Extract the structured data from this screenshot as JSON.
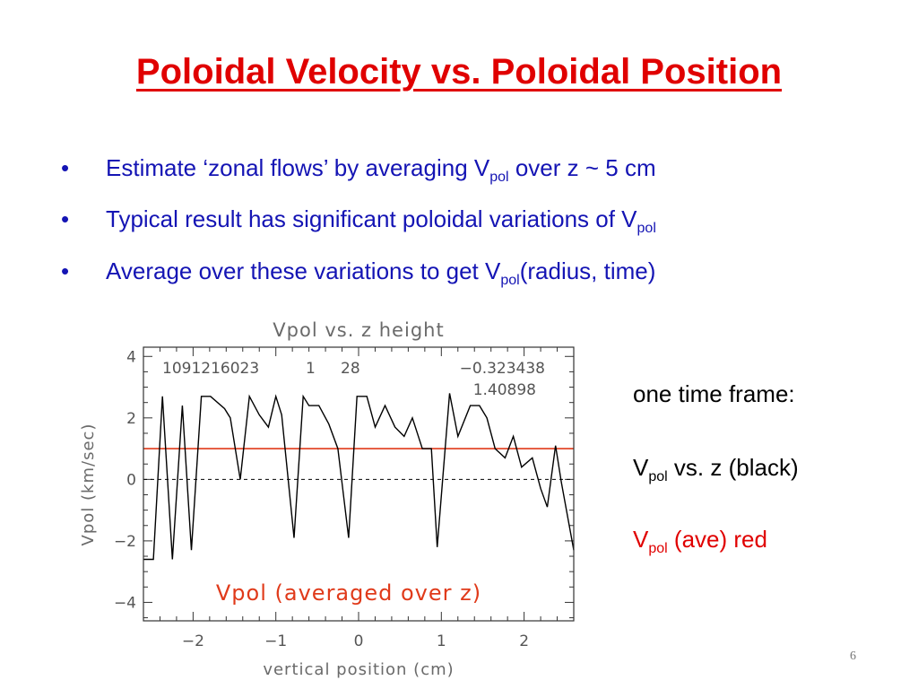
{
  "slide": {
    "title": "Poloidal Velocity vs. Poloidal Position",
    "bullets": [
      {
        "marker": "•",
        "before": "Estimate ‘zonal flows’ by averaging V",
        "sub": "pol",
        "after": " over z ~ 5 cm"
      },
      {
        "marker": "•",
        "before": "Typical result has significant poloidal variations of V",
        "sub": "pol",
        "after": ""
      },
      {
        "marker": "•",
        "before": "Average over these variations to get V",
        "sub": "pol",
        "after": "(radius, time)"
      }
    ],
    "side_notes": [
      {
        "before": "one time frame:",
        "sub": "",
        "after": ""
      },
      {
        "before": "V",
        "sub": "pol",
        "after": " vs. z (black)"
      },
      {
        "before": "V",
        "sub": "pol",
        "after": " (ave) red"
      }
    ],
    "page_number": "6"
  },
  "colors": {
    "title": "#e00000",
    "bullet_text": "#1414b4",
    "series_line": "#000000",
    "average_line": "#e03a1a",
    "axis": "#333333"
  },
  "chart_data": {
    "type": "line",
    "title": "Vpol vs. z height",
    "xlabel": "vertical position (cm)",
    "ylabel": "Vpol (km/sec)",
    "xlim": [
      -2.6,
      2.6
    ],
    "ylim": [
      -4.6,
      4.3
    ],
    "xticks": [
      -2,
      -1,
      0,
      1,
      2
    ],
    "xtick_labels": [
      "−2",
      "−1",
      "0",
      "1",
      "2"
    ],
    "yticks": [
      -4,
      -2,
      0,
      2,
      4
    ],
    "ytick_labels": [
      "−4",
      "−2",
      "0",
      "2",
      "4"
    ],
    "annotations": {
      "shot_id": "1091216023",
      "field_a": "1",
      "field_b": "28",
      "value_a": "−0.323438",
      "value_b": "1.40898",
      "red_label": "Vpol (averaged over z)"
    },
    "reference_lines": [
      {
        "y": 0,
        "style": "dashed",
        "color": "#000000"
      },
      {
        "y": 1.0,
        "style": "solid",
        "color": "#e03a1a"
      }
    ],
    "series": [
      {
        "x": [
          -2.6,
          -2.48,
          -2.37,
          -2.25,
          -2.13,
          -2.02,
          -1.9,
          -1.79,
          -1.62,
          -1.55,
          -1.43,
          -1.32,
          -1.2,
          -1.09,
          -1.0,
          -0.93,
          -0.78,
          -0.67,
          -0.6,
          -0.48,
          -0.36,
          -0.25,
          -0.12,
          -0.02,
          0.1,
          0.2,
          0.32,
          0.44,
          0.55,
          0.65,
          0.77,
          0.88,
          0.95,
          1.1,
          1.2,
          1.35,
          1.46,
          1.55,
          1.65,
          1.77,
          1.87,
          1.97,
          2.1,
          2.2,
          2.28,
          2.38,
          2.45,
          2.6
        ],
        "y": [
          -2.6,
          -2.6,
          2.7,
          -2.6,
          2.4,
          -2.3,
          2.7,
          2.7,
          2.3,
          2.0,
          0.0,
          2.7,
          2.1,
          1.7,
          2.7,
          2.1,
          -1.9,
          2.7,
          2.4,
          2.4,
          1.8,
          1.0,
          -1.9,
          2.7,
          2.7,
          1.7,
          2.4,
          1.7,
          1.4,
          2.0,
          1.0,
          1.0,
          -2.2,
          2.8,
          1.4,
          2.4,
          2.4,
          2.0,
          1.0,
          0.7,
          1.4,
          0.4,
          0.7,
          -0.3,
          -0.9,
          1.1,
          -0.1,
          -2.3
        ]
      }
    ]
  }
}
